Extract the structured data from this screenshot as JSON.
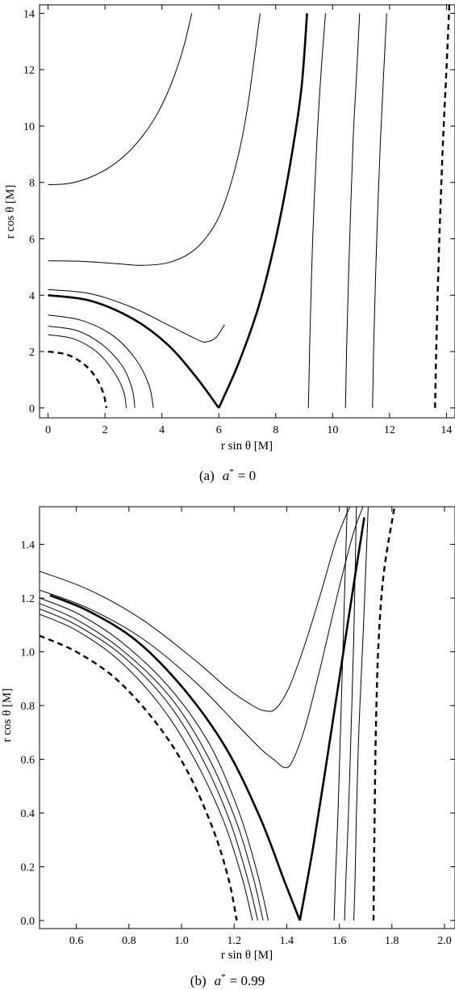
{
  "chart_data": [
    {
      "type": "line",
      "caption_prefix": "(a)",
      "caption_var": "a",
      "caption_sup": "*",
      "caption_value": "= 0",
      "xlabel": "r sin θ [M]",
      "ylabel": "r cos θ [M]",
      "xlim": [
        -0.3,
        14.3
      ],
      "ylim": [
        -0.35,
        14.3
      ],
      "xticks": [
        0,
        2,
        4,
        6,
        8,
        10,
        12,
        14
      ],
      "yticks": [
        0,
        2,
        4,
        6,
        8,
        10,
        12,
        14
      ],
      "xtick_labels": [
        "0",
        "2",
        "4",
        "6",
        "8",
        "10",
        "12",
        "14"
      ],
      "ytick_labels": [
        "0",
        "2",
        "4",
        "6",
        "8",
        "10",
        "12",
        "14"
      ],
      "grid": false,
      "series": [
        {
          "style": "dashed",
          "x": [
            0,
            0.7,
            1.3,
            1.7,
            1.95,
            2.05
          ],
          "y": [
            2.0,
            1.88,
            1.52,
            1.05,
            0.5,
            0.0
          ]
        },
        {
          "style": "thin",
          "x": [
            0,
            0.9,
            1.7,
            2.3,
            2.65,
            2.75
          ],
          "y": [
            2.6,
            2.45,
            2.0,
            1.3,
            0.6,
            0.0
          ]
        },
        {
          "style": "thin",
          "x": [
            0,
            1.0,
            1.9,
            2.6,
            2.95,
            3.05
          ],
          "y": [
            2.9,
            2.75,
            2.25,
            1.5,
            0.7,
            0.0
          ]
        },
        {
          "style": "thin",
          "x": [
            0,
            1.2,
            2.3,
            3.1,
            3.55,
            3.7
          ],
          "y": [
            3.3,
            3.1,
            2.55,
            1.7,
            0.8,
            0.0
          ]
        },
        {
          "style": "thick",
          "x": [
            0,
            1.5,
            3.0,
            4.2,
            5.2,
            6.0
          ],
          "y": [
            4.0,
            3.8,
            3.15,
            2.25,
            1.1,
            0.0
          ]
        },
        {
          "style": "thick",
          "x": [
            6.0,
            6.7,
            7.4,
            8.0,
            8.5,
            8.9,
            9.1
          ],
          "y": [
            0.0,
            1.6,
            3.6,
            6.0,
            8.6,
            11.3,
            14.0
          ]
        },
        {
          "style": "thin",
          "x": [
            0,
            1.5,
            3.0,
            4.3,
            5.3,
            5.6,
            5.9,
            6.2
          ],
          "y": [
            4.2,
            4.05,
            3.55,
            2.9,
            2.4,
            2.35,
            2.5,
            2.95
          ]
        },
        {
          "style": "thin",
          "x": [
            0,
            1.2,
            2.4,
            3.3,
            4.2,
            5.0,
            5.6,
            6.1,
            6.6,
            7.0,
            7.45
          ],
          "y": [
            5.22,
            5.2,
            5.12,
            5.06,
            5.15,
            5.5,
            6.1,
            7.0,
            8.6,
            10.6,
            14.0
          ]
        },
        {
          "style": "thin",
          "x": [
            0,
            0.7,
            1.4,
            2.1,
            2.8,
            3.4,
            3.9,
            4.35,
            4.75,
            5.05
          ],
          "y": [
            7.92,
            7.96,
            8.15,
            8.5,
            9.05,
            9.75,
            10.55,
            11.55,
            12.75,
            14.0
          ]
        },
        {
          "style": "thin",
          "x": [
            9.15,
            9.2,
            9.3,
            9.45,
            9.6,
            9.75
          ],
          "y": [
            0.0,
            2.5,
            6.0,
            9.5,
            12.0,
            14.0
          ]
        },
        {
          "style": "thin",
          "x": [
            10.45,
            10.5,
            10.6,
            10.72,
            10.85,
            10.95
          ],
          "y": [
            0.0,
            2.5,
            6.0,
            9.5,
            12.0,
            14.0
          ]
        },
        {
          "style": "thin",
          "x": [
            11.4,
            11.45,
            11.55,
            11.68,
            11.8,
            11.9
          ],
          "y": [
            0.0,
            2.5,
            6.0,
            9.5,
            12.0,
            14.0
          ]
        },
        {
          "style": "dashed",
          "x": [
            13.6,
            13.65,
            13.75,
            13.88,
            14.0,
            14.1
          ],
          "y": [
            0.0,
            2.5,
            6.0,
            9.5,
            12.0,
            14.3
          ]
        }
      ]
    },
    {
      "type": "line",
      "caption_prefix": "(b)",
      "caption_var": "a",
      "caption_sup": "*",
      "caption_value": "= 0.99",
      "xlabel": "r sin θ [M]",
      "ylabel": "r cos θ [M]",
      "xlim": [
        0.46,
        2.04
      ],
      "ylim": [
        -0.03,
        1.54
      ],
      "xticks": [
        0.6,
        0.8,
        1.0,
        1.2,
        1.4,
        1.6,
        1.8,
        2.0
      ],
      "yticks": [
        0.0,
        0.2,
        0.4,
        0.6,
        0.8,
        1.0,
        1.2,
        1.4
      ],
      "xtick_labels": [
        "0.6",
        "0.8",
        "1.0",
        "1.2",
        "1.4",
        "1.6",
        "1.8",
        "2.0"
      ],
      "ytick_labels": [
        "0.0",
        "0.2",
        "0.4",
        "0.6",
        "0.8",
        "1.0",
        "1.2",
        "1.4"
      ],
      "grid": false,
      "series": [
        {
          "style": "dashed",
          "x": [
            0.46,
            0.6,
            0.75,
            0.9,
            1.02,
            1.12,
            1.18,
            1.21
          ],
          "y": [
            1.06,
            1.0,
            0.9,
            0.74,
            0.56,
            0.34,
            0.15,
            0.0
          ]
        },
        {
          "style": "thin",
          "x": [
            0.46,
            0.6,
            0.76,
            0.92,
            1.05,
            1.16,
            1.23,
            1.27
          ],
          "y": [
            1.14,
            1.08,
            0.97,
            0.8,
            0.6,
            0.37,
            0.16,
            0.0
          ]
        },
        {
          "style": "thin",
          "x": [
            0.46,
            0.6,
            0.77,
            0.94,
            1.07,
            1.18,
            1.25,
            1.29
          ],
          "y": [
            1.16,
            1.1,
            0.99,
            0.82,
            0.62,
            0.38,
            0.16,
            0.0
          ]
        },
        {
          "style": "thin",
          "x": [
            0.46,
            0.6,
            0.77,
            0.95,
            1.09,
            1.2,
            1.27,
            1.31
          ],
          "y": [
            1.18,
            1.12,
            1.01,
            0.84,
            0.63,
            0.39,
            0.17,
            0.0
          ]
        },
        {
          "style": "thin",
          "x": [
            0.46,
            0.61,
            0.78,
            0.96,
            1.11,
            1.22,
            1.29,
            1.33
          ],
          "y": [
            1.2,
            1.14,
            1.03,
            0.86,
            0.65,
            0.4,
            0.17,
            0.0
          ]
        },
        {
          "style": "thick",
          "x": [
            0.5,
            0.65,
            0.83,
            1.01,
            1.17,
            1.3,
            1.39,
            1.45
          ],
          "y": [
            1.21,
            1.15,
            1.04,
            0.86,
            0.64,
            0.38,
            0.15,
            0.0
          ]
        },
        {
          "style": "thick",
          "x": [
            1.45,
            1.5,
            1.55,
            1.6,
            1.65,
            1.695
          ],
          "y": [
            0.0,
            0.27,
            0.58,
            0.9,
            1.22,
            1.5
          ]
        },
        {
          "style": "thin",
          "x": [
            0.46,
            0.65,
            0.85,
            1.05,
            1.2,
            1.3,
            1.35,
            1.39,
            1.42,
            1.47,
            1.53,
            1.59,
            1.65,
            1.69
          ],
          "y": [
            1.23,
            1.16,
            1.05,
            0.89,
            0.74,
            0.64,
            0.6,
            0.57,
            0.59,
            0.72,
            0.95,
            1.2,
            1.43,
            1.54
          ]
        },
        {
          "style": "thin",
          "x": [
            0.46,
            0.65,
            0.85,
            1.05,
            1.18,
            1.27,
            1.32,
            1.36,
            1.41,
            1.47,
            1.53,
            1.59,
            1.64
          ],
          "y": [
            1.3,
            1.23,
            1.12,
            0.97,
            0.86,
            0.8,
            0.78,
            0.79,
            0.87,
            1.03,
            1.22,
            1.42,
            1.54
          ]
        },
        {
          "style": "thin",
          "x": [
            1.58,
            1.585,
            1.595,
            1.605,
            1.615,
            1.63
          ],
          "y": [
            0.0,
            0.15,
            0.4,
            0.72,
            1.05,
            1.54
          ]
        },
        {
          "style": "thin",
          "x": [
            1.62,
            1.625,
            1.635,
            1.645,
            1.655,
            1.665
          ],
          "y": [
            0.0,
            0.15,
            0.4,
            0.72,
            1.05,
            1.54
          ]
        },
        {
          "style": "thin",
          "x": [
            1.655,
            1.66,
            1.665,
            1.675,
            1.69,
            1.71
          ],
          "y": [
            0.0,
            0.15,
            0.4,
            0.72,
            1.05,
            1.54
          ]
        },
        {
          "style": "dashed",
          "x": [
            1.73,
            1.732,
            1.735,
            1.74,
            1.75,
            1.77,
            1.81
          ],
          "y": [
            0.0,
            0.2,
            0.45,
            0.75,
            1.05,
            1.3,
            1.54
          ]
        }
      ]
    }
  ]
}
